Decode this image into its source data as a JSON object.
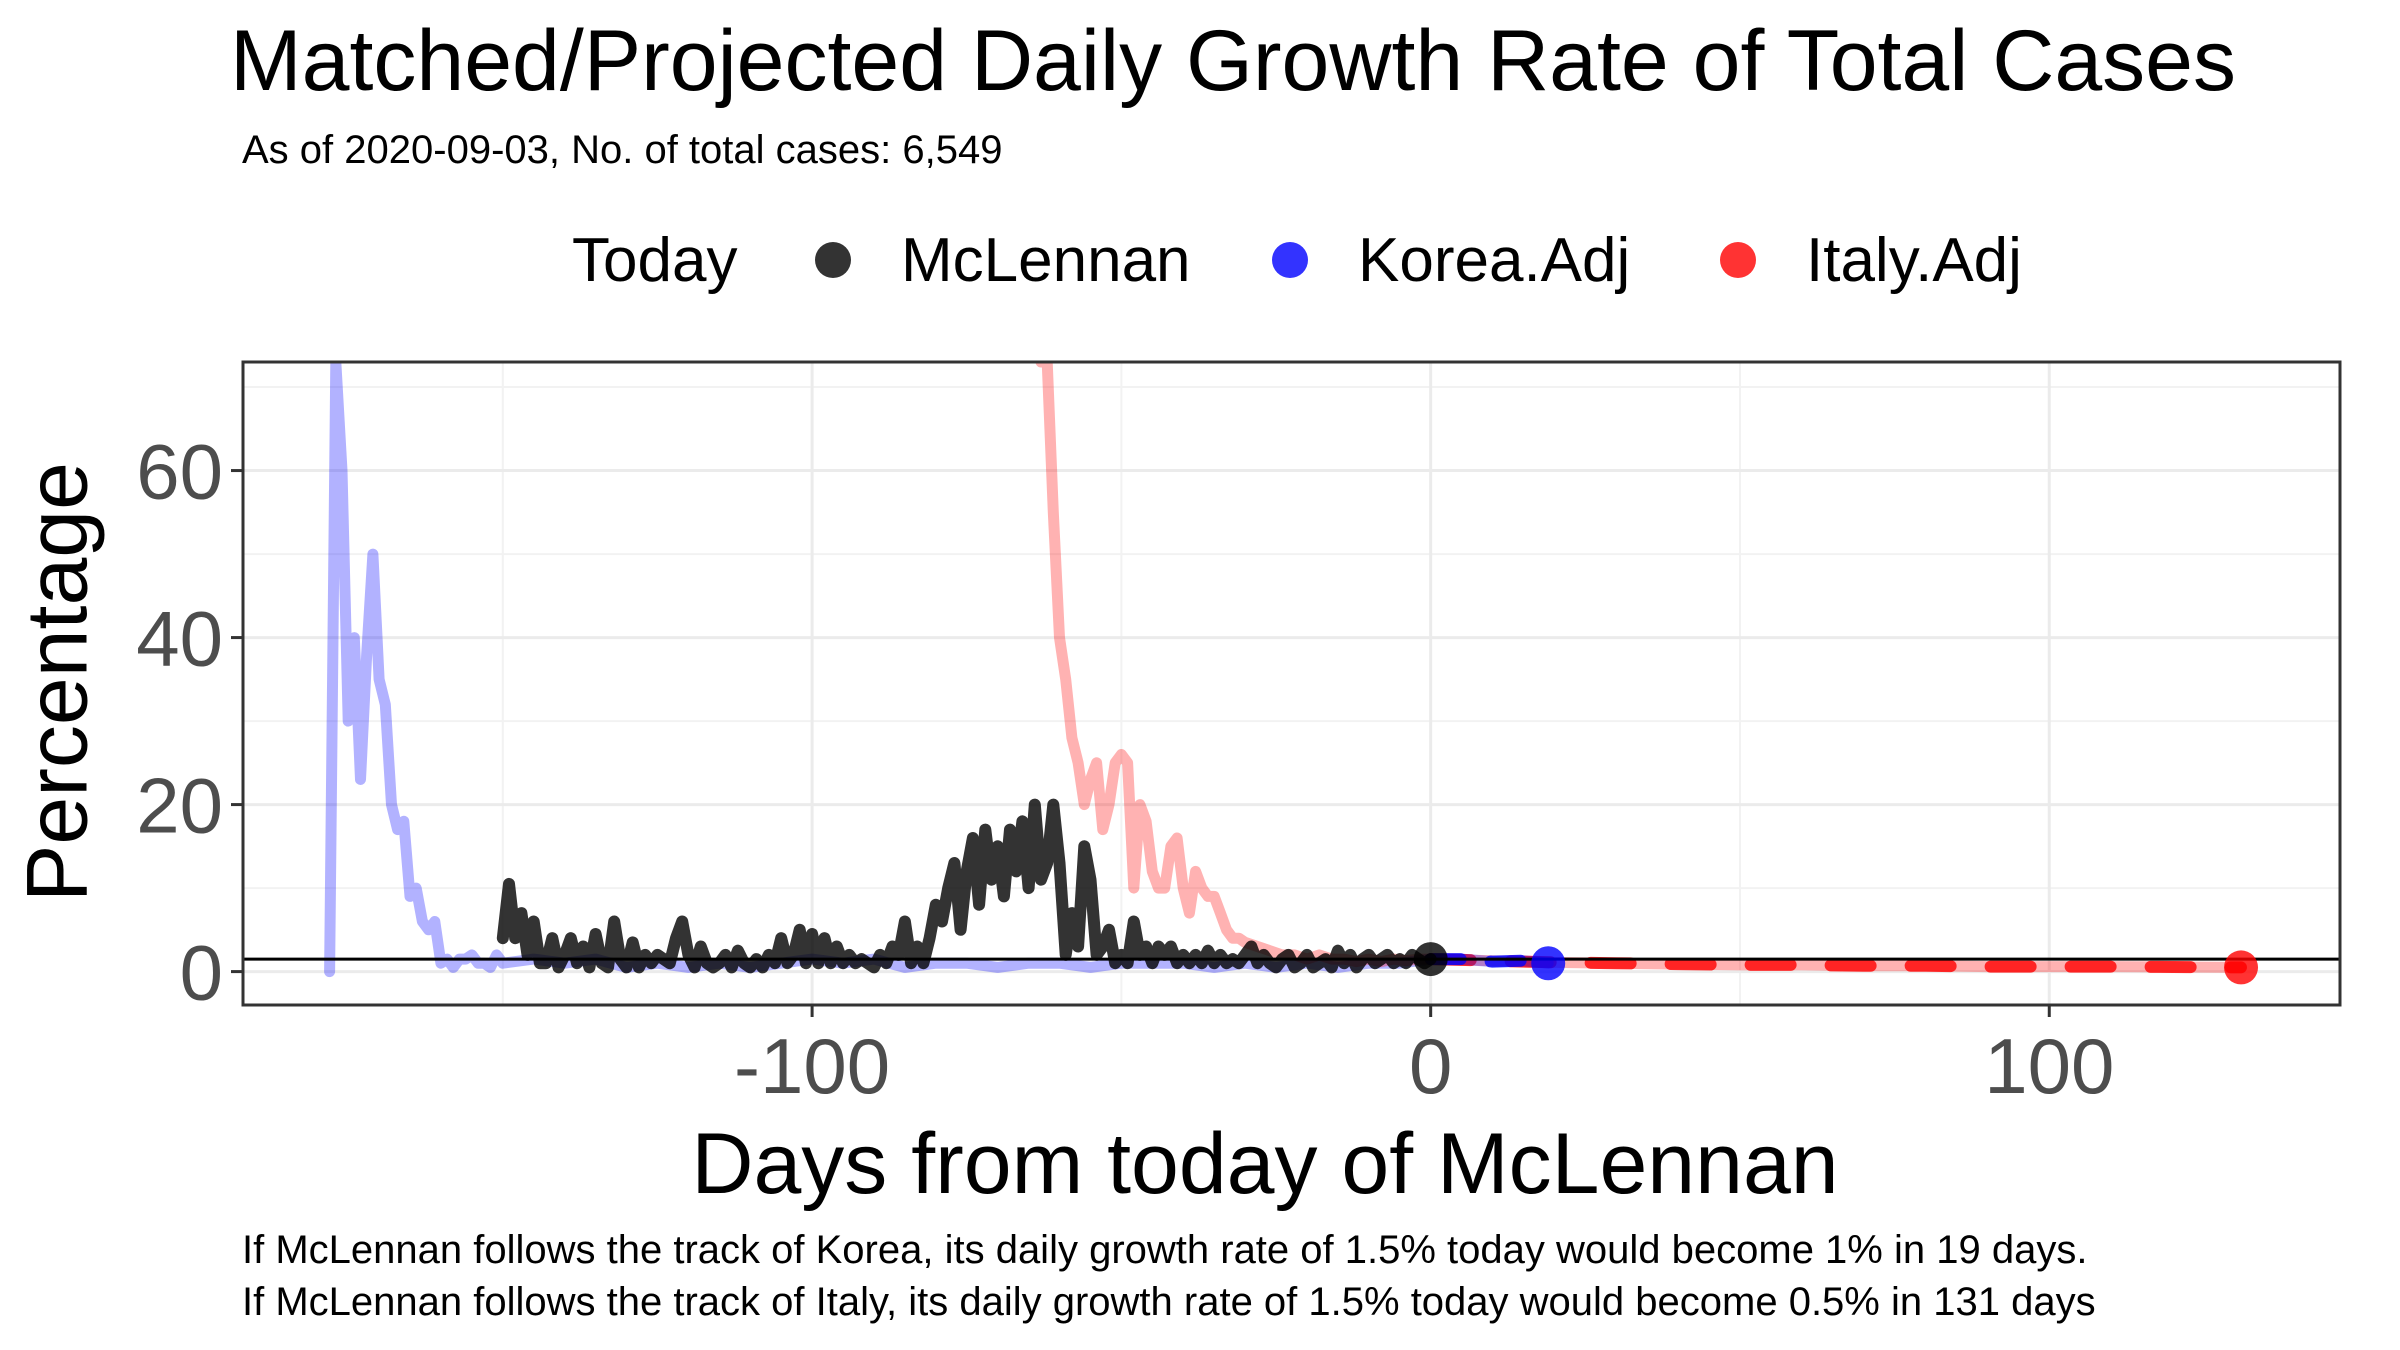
{
  "chart_data": {
    "type": "line",
    "title": "Matched/Projected Daily Growth Rate of Total Cases",
    "subtitle": "As of 2020-09-03, No. of total cases: 6,549",
    "xlabel": "Days from today of McLennan",
    "ylabel": "Percentage",
    "xlim": [
      -192,
      147
    ],
    "ylim": [
      -4,
      73
    ],
    "x_ticks": [
      -100,
      0,
      100
    ],
    "y_ticks": [
      0,
      20,
      40,
      60
    ],
    "x_tick_labels": [
      "-100",
      "0",
      "100"
    ],
    "y_tick_labels": [
      "0",
      "20",
      "40",
      "60"
    ],
    "grid": true,
    "legend_position": "top",
    "legend_title": "Today",
    "reference_line": {
      "y": 1.5,
      "color": "#000000"
    },
    "series": [
      {
        "name": "McLennan",
        "color": "#000000",
        "x": [
          -150,
          -149,
          -148,
          -147,
          -146,
          -145,
          -144,
          -143,
          -142,
          -141,
          -140,
          -139,
          -138,
          -137,
          -136,
          -135,
          -134,
          -133,
          -132,
          -131,
          -130,
          -129,
          -128,
          -127,
          -126,
          -125,
          -124,
          -123,
          -122,
          -121,
          -120,
          -119,
          -118,
          -117,
          -116,
          -115,
          -114,
          -113,
          -112,
          -111,
          -110,
          -109,
          -108,
          -107,
          -106,
          -105,
          -104,
          -103,
          -102,
          -101,
          -100,
          -99,
          -98,
          -97,
          -96,
          -95,
          -94,
          -93,
          -92,
          -91,
          -90,
          -89,
          -88,
          -87,
          -86,
          -85,
          -84,
          -83,
          -82,
          -81,
          -80,
          -79,
          -78,
          -77,
          -76,
          -75,
          -74,
          -73,
          -72,
          -71,
          -70,
          -69,
          -68,
          -67,
          -66,
          -65,
          -64,
          -63,
          -62,
          -61,
          -60,
          -59,
          -58,
          -57,
          -56,
          -55,
          -54,
          -53,
          -52,
          -51,
          -50,
          -49,
          -48,
          -47,
          -46,
          -45,
          -44,
          -43,
          -42,
          -41,
          -40,
          -39,
          -38,
          -37,
          -36,
          -35,
          -34,
          -33,
          -32,
          -31,
          -30,
          -29,
          -28,
          -27,
          -26,
          -25,
          -24,
          -23,
          -22,
          -21,
          -20,
          -19,
          -18,
          -17,
          -16,
          -15,
          -14,
          -13,
          -12,
          -11,
          -10,
          -9,
          -8,
          -7,
          -6,
          -5,
          -4,
          -3,
          -2,
          -1,
          0
        ],
        "values": [
          4,
          10.5,
          4,
          7,
          2,
          6,
          1,
          1,
          4,
          0.5,
          2,
          4,
          1,
          3,
          0.5,
          4.5,
          1,
          0.5,
          6,
          1.5,
          0.5,
          3.5,
          0.5,
          2,
          1,
          2,
          1.5,
          1,
          4,
          6,
          2,
          0.5,
          3,
          1,
          0.5,
          1,
          2,
          0.5,
          2.5,
          1,
          0.5,
          1.5,
          0.5,
          2,
          1,
          4,
          1,
          2,
          5,
          1,
          4.5,
          1,
          4,
          1,
          3,
          1,
          2,
          1,
          1.5,
          1,
          0.5,
          2,
          1,
          3,
          2,
          6,
          1,
          3,
          1,
          4,
          8,
          6,
          10,
          13,
          5,
          12,
          16,
          8,
          17,
          11,
          15,
          9,
          17,
          12,
          18,
          10,
          20,
          11,
          13,
          20,
          13,
          2,
          7,
          3,
          15,
          11,
          2,
          3,
          5,
          1,
          2,
          1,
          6,
          2,
          3,
          1,
          3,
          2,
          3,
          1,
          2,
          1,
          2,
          1,
          2.5,
          1,
          2,
          1,
          1.5,
          1,
          2,
          3,
          1,
          2,
          1,
          0.5,
          1.5,
          2,
          0.5,
          1,
          2,
          0.5,
          1,
          1.5,
          0.5,
          2.5,
          1,
          2,
          0.5,
          1.5,
          2,
          1,
          1.5,
          2,
          1,
          1.5,
          1,
          2,
          1.5,
          1,
          1.5
        ]
      },
      {
        "name": "Korea.Adj",
        "color": "#0000ff",
        "x": [
          -178,
          -177,
          -176,
          -175,
          -174,
          -173,
          -172,
          -171,
          -170,
          -169,
          -168,
          -167,
          -166,
          -165,
          -164,
          -163,
          -162,
          -161,
          -160,
          -159,
          -158,
          -157,
          -156,
          -155,
          -154,
          -153,
          -152,
          -151,
          -150,
          -145,
          -140,
          -135,
          -130,
          -125,
          -120,
          -115,
          -110,
          -105,
          -100,
          -95,
          -90,
          -85,
          -80,
          -75,
          -70,
          -65,
          -60,
          -55,
          -50,
          -45,
          -40,
          -35,
          -30,
          -25,
          -20,
          -15,
          -10,
          -5,
          0,
          5,
          10,
          15,
          19
        ],
        "values": [
          0,
          73,
          60,
          30,
          40,
          23,
          38,
          50,
          35,
          32,
          20,
          17,
          18,
          9,
          10,
          6,
          5,
          6,
          1,
          1.5,
          0.5,
          1.5,
          1.5,
          2,
          1,
          1,
          0.5,
          2,
          1,
          1.5,
          1,
          1.5,
          0.5,
          1,
          0.5,
          1,
          0.5,
          1,
          1.5,
          1,
          1.5,
          0.5,
          1,
          1,
          0.5,
          1,
          1,
          0.5,
          1,
          1,
          1,
          0.5,
          1,
          0.5,
          1,
          0.5,
          1,
          1,
          1.5,
          1.5,
          1.2,
          1.3,
          1
        ]
      },
      {
        "name": "Italy.Adj",
        "color": "#ff0000",
        "x": [
          -63,
          -62,
          -61,
          -60,
          -59,
          -58,
          -57,
          -56,
          -55,
          -54,
          -53,
          -52,
          -51,
          -50,
          -49,
          -48,
          -47,
          -46,
          -45,
          -44,
          -43,
          -42,
          -41,
          -40,
          -39,
          -38,
          -37,
          -36,
          -35,
          -34,
          -33,
          -32,
          -31,
          -30,
          -28,
          -26,
          -24,
          -22,
          -20,
          -18,
          -16,
          -14,
          -12,
          -10,
          -8,
          -6,
          -4,
          -2,
          0,
          10,
          20,
          30,
          40,
          50,
          60,
          70,
          80,
          90,
          100,
          110,
          120,
          131
        ],
        "values": [
          73,
          73,
          55,
          40,
          35,
          28,
          25,
          20,
          23,
          25,
          17,
          20,
          25,
          26,
          25,
          10,
          20,
          18,
          12,
          10,
          10,
          15,
          16,
          10,
          7,
          12,
          10,
          9,
          9,
          7,
          5,
          4,
          4,
          3.5,
          3,
          2.5,
          2,
          2,
          1.5,
          2,
          1.5,
          1.5,
          1.2,
          1.5,
          1.2,
          1.5,
          1.3,
          1.5,
          1.5,
          1.3,
          1.1,
          1,
          0.9,
          0.8,
          0.8,
          0.7,
          0.7,
          0.6,
          0.6,
          0.6,
          0.55,
          0.5
        ]
      }
    ],
    "markers": [
      {
        "name": "McLennan",
        "x": 0,
        "y": 1.5,
        "color": "#000000"
      },
      {
        "name": "Korea.Adj",
        "x": 19,
        "y": 1,
        "color": "#0000ff"
      },
      {
        "name": "Italy.Adj",
        "x": 131,
        "y": 0.5,
        "color": "#ff0000"
      }
    ]
  },
  "legend": {
    "title": "Today",
    "items": [
      {
        "label": "McLennan",
        "color": "#000000"
      },
      {
        "label": "Korea.Adj",
        "color": "#0000ff"
      },
      {
        "label": "Italy.Adj",
        "color": "#ff0000"
      }
    ]
  },
  "captions": [
    "If McLennan follows the track of Korea, its daily growth rate of 1.5% today would become 1% in 19 days.",
    "If McLennan follows the track of Italy, its daily growth rate of 1.5% today would become 0.5% in 131 days"
  ]
}
